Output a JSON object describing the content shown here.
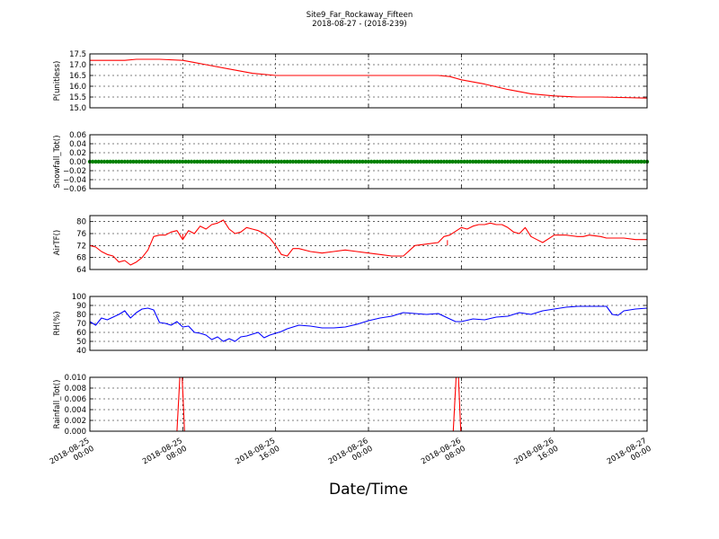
{
  "title_line1": "Site9_Far_Rockaway_Fifteen",
  "title_line2": "2018-08-27 - (2018-239)",
  "xlabel": "Date/Time",
  "x_ticks": [
    [
      "2018-08-25",
      "00:00"
    ],
    [
      "2018-08-25",
      "08:00"
    ],
    [
      "2018-08-25",
      "16:00"
    ],
    [
      "2018-08-26",
      "00:00"
    ],
    [
      "2018-08-26",
      "08:00"
    ],
    [
      "2018-08-26",
      "16:00"
    ],
    [
      "2018-08-27",
      "00:00"
    ]
  ],
  "chart_data": [
    {
      "type": "line",
      "ylabel": "P(unitless)",
      "ylim": [
        15.0,
        17.5
      ],
      "yticks": [
        "15.0",
        "15.5",
        "16.0",
        "16.5",
        "17.0",
        "17.5"
      ],
      "grid": true,
      "color": "#ff0000",
      "marker": false,
      "x_hours": [
        0,
        3.0,
        4.0,
        6.0,
        8.0,
        9.0,
        10.0,
        12.0,
        14.0,
        16.0,
        18.0,
        24.0,
        30.0,
        31.0,
        32.0,
        34.0,
        36.0,
        38.0,
        40.0,
        42.0,
        44.0,
        48.0
      ],
      "values": [
        17.2,
        17.2,
        17.25,
        17.25,
        17.2,
        17.1,
        17.0,
        16.8,
        16.6,
        16.5,
        16.5,
        16.5,
        16.5,
        16.45,
        16.3,
        16.1,
        15.85,
        15.65,
        15.55,
        15.5,
        15.5,
        15.45
      ]
    },
    {
      "type": "line",
      "ylabel": "Snowfall_Tot()",
      "ylim": [
        -0.06,
        0.06
      ],
      "yticks": [
        "−0.06",
        "−0.04",
        "−0.02",
        "0.00",
        "0.02",
        "0.04",
        "0.06"
      ],
      "grid": true,
      "color": "#008000",
      "marker": true,
      "x_hours": [
        0,
        48
      ],
      "values": [
        0.0,
        0.0
      ]
    },
    {
      "type": "line",
      "ylabel": "AirTF()",
      "ylim": [
        64,
        82
      ],
      "yticks": [
        "64",
        "68",
        "72",
        "76",
        "80"
      ],
      "grid": true,
      "color": "#ff0000",
      "marker": false,
      "x_hours": [
        0,
        0.5,
        1.0,
        1.5,
        2.0,
        2.5,
        3.0,
        3.5,
        4.0,
        4.5,
        5.0,
        5.5,
        6.0,
        6.5,
        7.0,
        7.5,
        8.0,
        8.5,
        9.0,
        9.5,
        10.0,
        10.5,
        11.0,
        11.5,
        12.0,
        12.5,
        13.0,
        13.5,
        14.0,
        14.5,
        15.0,
        15.5,
        16.0,
        16.5,
        17.0,
        17.5,
        18.0,
        19.0,
        20.0,
        21.0,
        22.0,
        23.0,
        24.0,
        25.0,
        26.0,
        27.0,
        28.0,
        29.0,
        30.0,
        30.5,
        31.0,
        32.0,
        32.5,
        33.0,
        33.5,
        34.0,
        34.5,
        35.0,
        35.5,
        36.0,
        36.5,
        37.0,
        37.5,
        38.0,
        38.5,
        39.0,
        40.0,
        41.0,
        42.0,
        42.5,
        43.0,
        44.0,
        44.5,
        45.0,
        46.0,
        47.0,
        48.0
      ],
      "values": [
        72,
        71.5,
        70,
        69,
        68.5,
        66.5,
        67,
        65.5,
        66.5,
        68,
        70.5,
        75,
        75.5,
        75.5,
        76.5,
        77,
        74,
        77,
        76,
        78.5,
        77.5,
        79,
        79.5,
        80.5,
        77.5,
        76,
        76.5,
        78,
        77.5,
        77,
        76,
        74.5,
        72,
        69,
        68.5,
        71,
        71,
        70,
        69.5,
        70,
        70.5,
        70,
        69.5,
        69,
        68.5,
        68.5,
        72,
        72.5,
        73,
        75,
        75.5,
        78,
        77.5,
        78.5,
        79,
        79,
        79.5,
        79,
        79,
        78,
        76.5,
        76,
        78,
        75,
        74,
        73,
        75.5,
        75.5,
        75,
        75,
        75.5,
        75,
        74.5,
        74.5,
        74.5,
        74,
        74
      ],
      "spikes": [
        [
          8.0,
          74
        ],
        [
          30.8,
          72
        ]
      ]
    },
    {
      "type": "line",
      "ylabel": "RH(%)",
      "ylim": [
        40,
        100
      ],
      "yticks": [
        "40",
        "50",
        "60",
        "70",
        "80",
        "90",
        "100"
      ],
      "grid": true,
      "color": "#0000ff",
      "marker": false,
      "x_hours": [
        0,
        0.5,
        1.0,
        1.5,
        2.0,
        2.5,
        3.0,
        3.5,
        4.0,
        4.5,
        5.0,
        5.5,
        6.0,
        6.5,
        7.0,
        7.5,
        8.0,
        8.5,
        9.0,
        9.5,
        10.0,
        10.5,
        11.0,
        11.5,
        12.0,
        12.5,
        13.0,
        13.5,
        14.0,
        14.5,
        15.0,
        15.5,
        16.0,
        16.5,
        17.0,
        18.0,
        19.0,
        20.0,
        21.0,
        22.0,
        23.0,
        24.0,
        25.0,
        26.0,
        27.0,
        28.0,
        29.0,
        30.0,
        30.5,
        31.0,
        31.5,
        32.0,
        33.0,
        34.0,
        35.0,
        36.0,
        37.0,
        38.0,
        39.0,
        40.0,
        41.0,
        42.0,
        43.0,
        44.0,
        44.5,
        45.0,
        45.5,
        46.0,
        47.0,
        48.0
      ],
      "values": [
        72,
        68,
        76,
        74,
        77,
        80,
        84,
        76,
        82,
        86,
        87,
        85,
        71,
        70,
        68,
        72,
        66,
        67,
        60,
        59,
        57,
        52,
        55,
        50,
        53,
        50,
        55,
        56,
        58,
        60,
        54,
        57,
        59,
        61,
        64,
        68,
        67,
        65,
        65,
        66,
        69,
        73,
        76,
        78,
        82,
        81,
        80,
        81,
        78,
        75,
        72,
        72,
        75,
        74,
        77,
        78,
        82,
        80,
        84,
        86,
        88,
        89,
        89,
        89,
        89,
        80,
        79,
        84,
        86,
        87
      ]
    },
    {
      "type": "line",
      "ylabel": "Rainfall_Tot()",
      "ylim": [
        0.0,
        0.01
      ],
      "yticks": [
        "0.000",
        "0.002",
        "0.004",
        "0.006",
        "0.008",
        "0.010"
      ],
      "grid": true,
      "color": "#ff0000",
      "marker": false,
      "x_hours": [
        0,
        7.5,
        7.75,
        7.95,
        8.15,
        31.3,
        31.55,
        31.75,
        31.95,
        48
      ],
      "values": [
        0,
        0,
        0.01,
        0.01,
        0,
        0,
        0.01,
        0.01,
        0,
        0
      ]
    }
  ]
}
